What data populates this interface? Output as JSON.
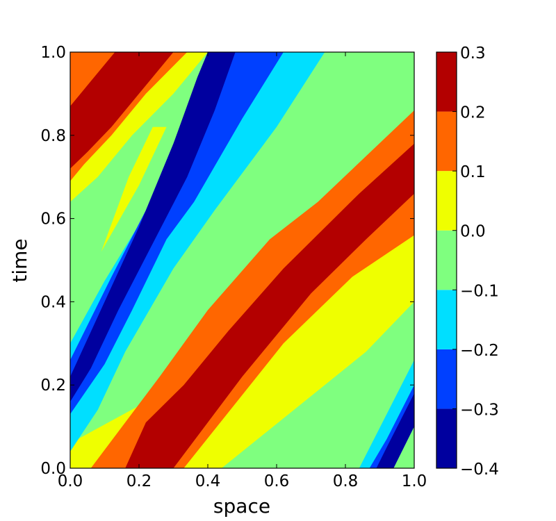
{
  "chart_data": {
    "type": "heatmap",
    "subtype": "filled-contour",
    "title": "",
    "xlabel": "space",
    "ylabel": "time",
    "xlim": [
      0.0,
      1.0
    ],
    "ylim": [
      0.0,
      1.0
    ],
    "x_ticks": [
      "0.0",
      "0.2",
      "0.4",
      "0.6",
      "0.8",
      "1.0"
    ],
    "y_ticks": [
      "0.0",
      "0.2",
      "0.4",
      "0.6",
      "0.8",
      "1.0"
    ],
    "grid": false,
    "colorbar": {
      "levels": [
        -0.4,
        -0.3,
        -0.2,
        -0.1,
        0.0,
        0.1,
        0.2,
        0.3
      ],
      "tick_labels": [
        "−0.4",
        "−0.3",
        "−0.2",
        "−0.1",
        "0.0",
        "0.1",
        "0.2",
        "0.3"
      ],
      "colors": [
        "#00009f",
        "#0040ff",
        "#00dfff",
        "#7fff7f",
        "#efff00",
        "#ff6600",
        "#b30000"
      ]
    },
    "field_description": "traveling wave bands moving toward larger space as time increases",
    "bands": [
      {
        "level": "0.2 to 0.3",
        "color": "#b30000",
        "polygon": [
          [
            0.16,
            0.0
          ],
          [
            0.3,
            0.0
          ],
          [
            0.7,
            0.42
          ],
          [
            1.0,
            0.68
          ],
          [
            1.0,
            0.78
          ],
          [
            0.62,
            0.47
          ],
          [
            0.46,
            0.33
          ],
          [
            0.22,
            0.13
          ]
        ]
      },
      {
        "level": "0.2 to 0.3",
        "color": "#b30000",
        "polygon": [
          [
            0.0,
            0.72
          ],
          [
            0.0,
            0.87
          ],
          [
            0.13,
            1.0
          ],
          [
            0.3,
            1.0
          ],
          [
            0.18,
            0.87
          ],
          [
            0.05,
            0.76
          ]
        ]
      }
    ]
  }
}
